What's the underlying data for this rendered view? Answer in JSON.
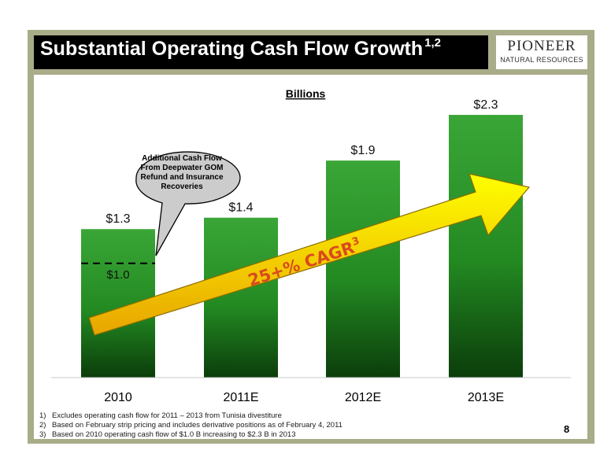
{
  "slide": {
    "title": "Substantial Operating Cash Flow Growth",
    "title_sup": "1,2",
    "logo_name": "PIONEER",
    "logo_sub": "NATURAL RESOURCES",
    "page_number": "8",
    "callout": [
      "Additional Cash Flow",
      "From Deepwater GOM",
      "Refund and Insurance",
      "Recoveries"
    ],
    "arrow_label": "25+% CAGR",
    "arrow_label_sup": "3",
    "footnotes": [
      {
        "num": "1)",
        "text": "Excludes operating cash flow for 2011 – 2013 from Tunisia divestiture"
      },
      {
        "num": "2)",
        "text": "Based on February strip pricing and includes derivative positions as of February 4, 2011"
      },
      {
        "num": "3)",
        "text": "Based on 2010 operating cash flow of $1.0 B increasing to $2.3 B in 2013"
      }
    ],
    "colors": {
      "bar_top": "#3aa637",
      "bar_bottom": "#0b3d0b",
      "arrow_top": "#ffff00",
      "arrow_bottom": "#e8a500",
      "frame": "#a9ac88"
    }
  },
  "chart_data": {
    "type": "bar",
    "title": "Billions",
    "categories": [
      "2010",
      "2011E",
      "2012E",
      "2013E"
    ],
    "values": [
      1.3,
      1.4,
      1.9,
      2.3
    ],
    "data_labels": [
      "$1.3",
      "$1.4",
      "$1.9",
      "$2.3"
    ],
    "reference_line": {
      "category": "2010",
      "value": 1.0,
      "label": "$1.0"
    },
    "ylim": [
      0,
      2.5
    ],
    "grid": false,
    "legend": "none"
  }
}
